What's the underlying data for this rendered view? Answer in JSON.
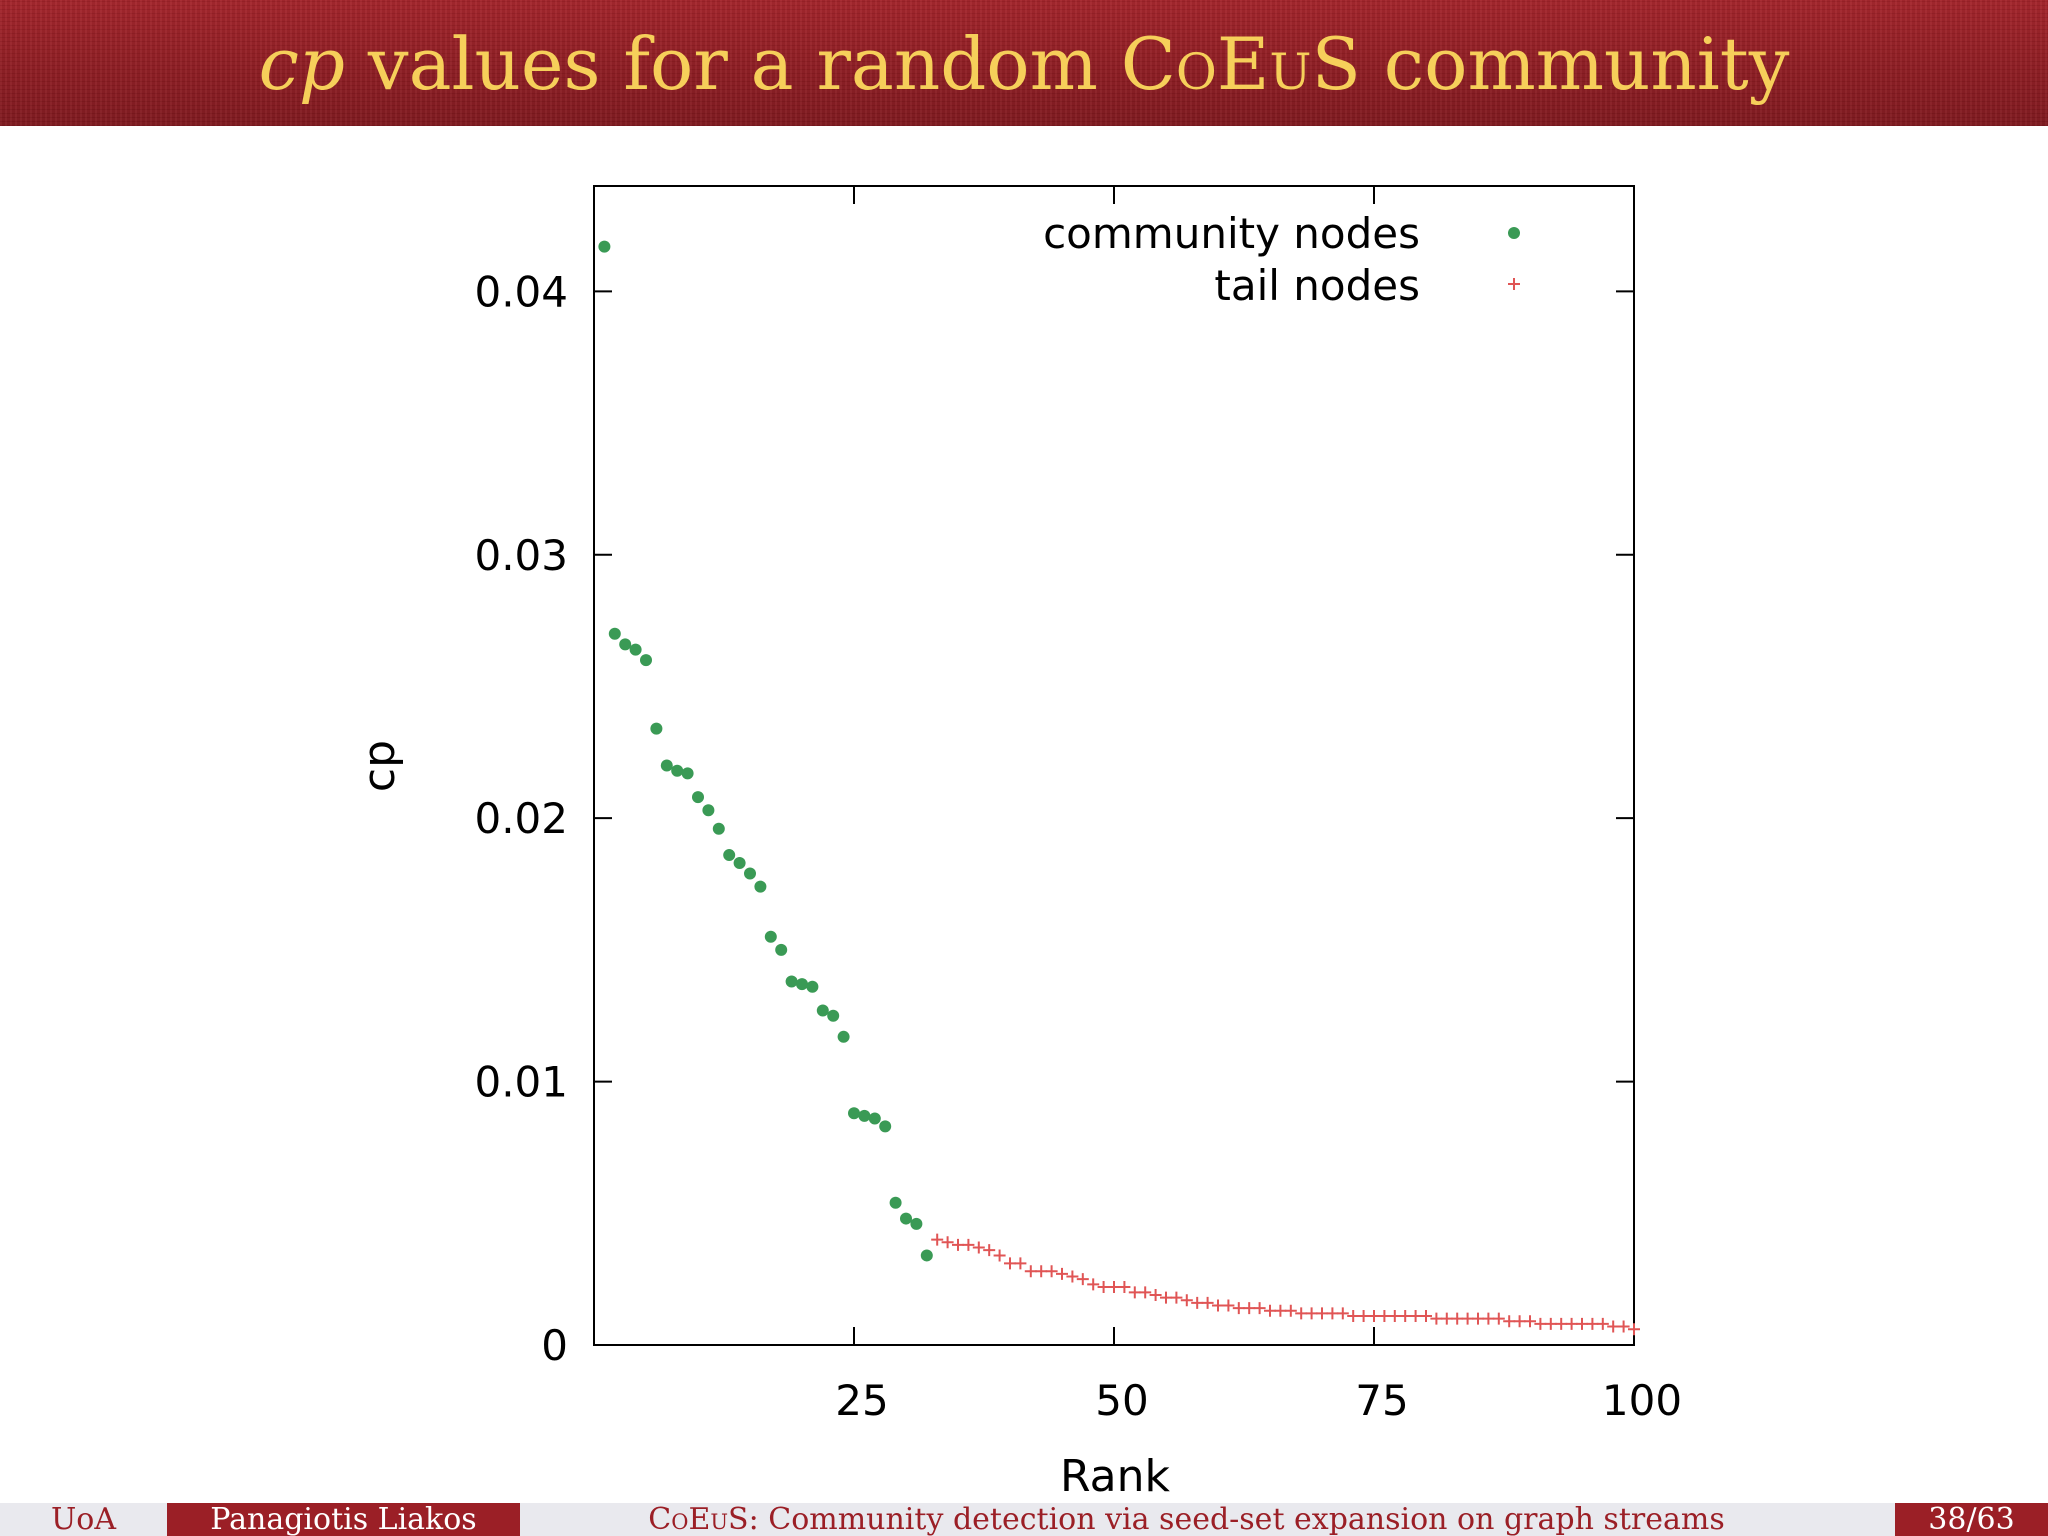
{
  "slide": {
    "title_italic": "cp",
    "title_rest": " values for a random ",
    "title_name": "CoEuS",
    "title_tail": " community"
  },
  "footer": {
    "institution": "UoA",
    "author": "Panagiotis Liakos",
    "title_name": "CoEuS",
    "title_rest": ": Community detection via seed-set expansion on graph streams",
    "page": "38/63"
  },
  "colors": {
    "header_bg": "#9b1f26",
    "title_text": "#f6cf5a",
    "community": "#3a9a55",
    "tail": "#e05555"
  },
  "chart_data": {
    "type": "scatter",
    "title": "",
    "xlabel": "Rank",
    "ylabel": "cp",
    "xlim": [
      0,
      100
    ],
    "ylim": [
      0,
      0.044
    ],
    "xticks": [
      25,
      50,
      75,
      100
    ],
    "xtick_labels": [
      "25",
      "50",
      "75",
      "100"
    ],
    "yticks": [
      0,
      0.01,
      0.02,
      0.03,
      0.04
    ],
    "ytick_labels": [
      "0",
      "0.01",
      "0.02",
      "0.03",
      "0.04"
    ],
    "legend_position": "top-right",
    "series": [
      {
        "name": "community nodes",
        "marker": "dot",
        "x": [
          1,
          2,
          3,
          4,
          5,
          6,
          7,
          8,
          9,
          10,
          11,
          12,
          13,
          14,
          15,
          16,
          17,
          18,
          19,
          20,
          21,
          22,
          23,
          24,
          25,
          26,
          27,
          28,
          29,
          30,
          31,
          32
        ],
        "y": [
          0.0417,
          0.027,
          0.0266,
          0.0264,
          0.026,
          0.0234,
          0.022,
          0.0218,
          0.0217,
          0.0208,
          0.0203,
          0.0196,
          0.0186,
          0.0183,
          0.0179,
          0.0174,
          0.0155,
          0.015,
          0.0138,
          0.0137,
          0.0136,
          0.0127,
          0.0125,
          0.0117,
          0.0088,
          0.0087,
          0.0086,
          0.0083,
          0.0054,
          0.0048,
          0.0046,
          0.0034
        ]
      },
      {
        "name": "tail nodes",
        "marker": "plus",
        "x": [
          33,
          34,
          35,
          36,
          37,
          38,
          39,
          40,
          41,
          42,
          43,
          44,
          45,
          46,
          47,
          48,
          49,
          50,
          51,
          52,
          53,
          54,
          55,
          56,
          57,
          58,
          59,
          60,
          61,
          62,
          63,
          64,
          65,
          66,
          67,
          68,
          69,
          70,
          71,
          72,
          73,
          74,
          75,
          76,
          77,
          78,
          79,
          80,
          81,
          82,
          83,
          84,
          85,
          86,
          87,
          88,
          89,
          90,
          91,
          92,
          93,
          94,
          95,
          96,
          97,
          98,
          99,
          100
        ],
        "y": [
          0.004,
          0.0039,
          0.0038,
          0.0038,
          0.0037,
          0.0036,
          0.0034,
          0.0031,
          0.0031,
          0.0028,
          0.0028,
          0.0028,
          0.0027,
          0.0026,
          0.0025,
          0.0023,
          0.0022,
          0.0022,
          0.0022,
          0.002,
          0.002,
          0.0019,
          0.0018,
          0.0018,
          0.0017,
          0.0016,
          0.0016,
          0.0015,
          0.0015,
          0.0014,
          0.0014,
          0.0014,
          0.0013,
          0.0013,
          0.0013,
          0.0012,
          0.0012,
          0.0012,
          0.0012,
          0.0012,
          0.0011,
          0.0011,
          0.0011,
          0.0011,
          0.0011,
          0.0011,
          0.0011,
          0.0011,
          0.001,
          0.001,
          0.001,
          0.001,
          0.001,
          0.001,
          0.001,
          0.0009,
          0.0009,
          0.0009,
          0.0008,
          0.0008,
          0.0008,
          0.0008,
          0.0008,
          0.0008,
          0.0008,
          0.0007,
          0.0007,
          0.0006
        ]
      }
    ]
  }
}
